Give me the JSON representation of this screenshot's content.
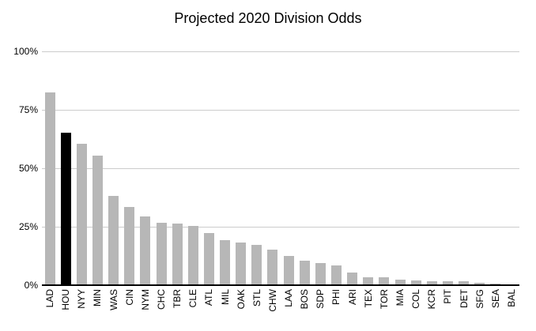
{
  "title": "Projected 2020 Division Odds",
  "colors": {
    "background": "#ffffff",
    "bar_default": "#b7b7b7",
    "bar_highlight": "#000000",
    "gridline": "#cccccc",
    "axis_line": "#000000",
    "text": "#000000"
  },
  "chart_data": {
    "type": "bar",
    "title": "Projected 2020 Division Odds",
    "categories": [
      "LAD",
      "HOU",
      "NYY",
      "MIN",
      "WAS",
      "CIN",
      "NYM",
      "CHC",
      "TBR",
      "CLE",
      "ATL",
      "MIL",
      "OAK",
      "STL",
      "CHW",
      "LAA",
      "BOS",
      "SDP",
      "PHI",
      "ARI",
      "TEX",
      "TOR",
      "MIA",
      "COL",
      "KCR",
      "PIT",
      "DET",
      "SFG",
      "SEA",
      "BAL"
    ],
    "values": [
      82,
      65,
      60,
      55,
      38,
      33,
      29,
      26.5,
      26,
      25,
      22,
      19,
      18,
      17,
      15,
      12,
      10,
      9,
      8,
      5,
      3,
      3,
      2.2,
      1.8,
      1.5,
      1.5,
      1.2,
      0.6,
      0.3,
      0.1
    ],
    "highlighted_category": "HOU",
    "xlabel": "",
    "ylabel": "",
    "ylim": [
      0,
      100
    ],
    "ytick_values": [
      0,
      25,
      50,
      75,
      100
    ],
    "ytick_labels": [
      "0%",
      "25%",
      "50%",
      "75%",
      "100%"
    ],
    "grid": true,
    "legend": false,
    "x_label_rotation_degrees": 90
  }
}
